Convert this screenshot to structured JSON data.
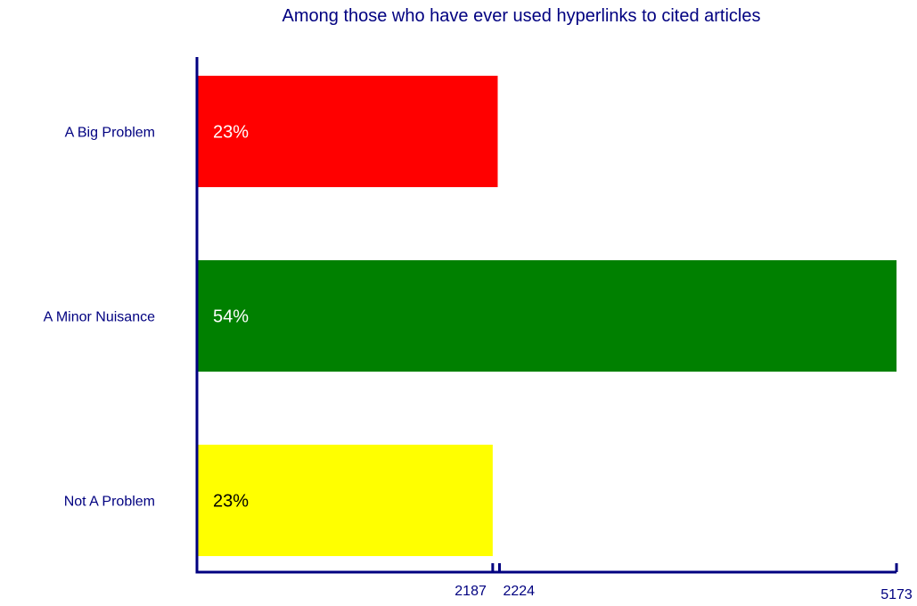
{
  "chart_data": {
    "type": "bar",
    "orientation": "horizontal",
    "title": "Among those who have ever used hyperlinks to cited articles",
    "xlabel": "",
    "ylabel": "",
    "categories": [
      "A Big Problem",
      "A Minor Nuisance",
      "Not A Problem"
    ],
    "values": [
      2224,
      5173,
      2187
    ],
    "value_labels": [
      "23%",
      "54%",
      "23%"
    ],
    "colors": [
      "#ff0000",
      "#008000",
      "#ffff00"
    ],
    "label_colors": [
      "#ffffff",
      "#ffffff",
      "#000000"
    ],
    "xlim": [
      0,
      5173
    ],
    "x_ticks": [
      "2187",
      "2224",
      "5173"
    ],
    "grid": false,
    "legend": "none"
  }
}
